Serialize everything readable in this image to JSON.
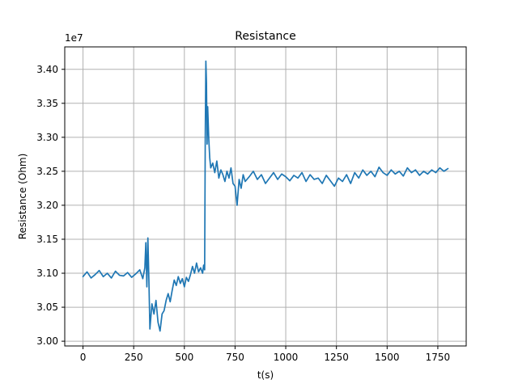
{
  "chart_data": {
    "type": "line",
    "title": "Resistance",
    "xlabel": "t(s)",
    "ylabel": "Resistance (Ohm)",
    "offset_label": "1e7",
    "xlim": [
      -90,
      1890
    ],
    "ylim": [
      2.993,
      3.433
    ],
    "xticks": [
      0,
      250,
      500,
      750,
      1000,
      1250,
      1500,
      1750
    ],
    "yticks": [
      3.0,
      3.05,
      3.1,
      3.15,
      3.2,
      3.25,
      3.3,
      3.35,
      3.4
    ],
    "xtick_labels": [
      "0",
      "250",
      "500",
      "750",
      "1000",
      "1250",
      "1500",
      "1750"
    ],
    "ytick_labels": [
      "3.00",
      "3.05",
      "3.10",
      "3.15",
      "3.20",
      "3.25",
      "3.30",
      "3.35",
      "3.40"
    ],
    "grid": true,
    "line_color": "#1f77b4",
    "series": [
      {
        "x": [
          0,
          20,
          40,
          60,
          80,
          100,
          120,
          140,
          160,
          180,
          200,
          220,
          240,
          260,
          280,
          295,
          305,
          310,
          315,
          320,
          325,
          330,
          340,
          350,
          360,
          370,
          380,
          390,
          400,
          410,
          420,
          430,
          440,
          450,
          460,
          470,
          480,
          490,
          500,
          510,
          520,
          530,
          540,
          550,
          560,
          570,
          580,
          590,
          595,
          600,
          603,
          606,
          609,
          612,
          615,
          620,
          625,
          630,
          640,
          650,
          660,
          670,
          680,
          690,
          700,
          710,
          720,
          730,
          740,
          750,
          760,
          770,
          780,
          790,
          800,
          820,
          840,
          860,
          880,
          900,
          920,
          940,
          960,
          980,
          1000,
          1020,
          1040,
          1060,
          1080,
          1100,
          1120,
          1140,
          1160,
          1180,
          1200,
          1220,
          1240,
          1260,
          1280,
          1300,
          1320,
          1340,
          1360,
          1380,
          1400,
          1420,
          1440,
          1460,
          1480,
          1500,
          1520,
          1540,
          1560,
          1580,
          1600,
          1620,
          1640,
          1660,
          1680,
          1700,
          1720,
          1740,
          1760,
          1780,
          1800
        ],
        "y": [
          3.095,
          3.102,
          3.093,
          3.098,
          3.104,
          3.095,
          3.1,
          3.093,
          3.103,
          3.097,
          3.096,
          3.101,
          3.094,
          3.099,
          3.105,
          3.092,
          3.108,
          3.145,
          3.08,
          3.152,
          3.09,
          3.018,
          3.055,
          3.04,
          3.06,
          3.028,
          3.015,
          3.04,
          3.045,
          3.06,
          3.07,
          3.058,
          3.075,
          3.09,
          3.082,
          3.095,
          3.085,
          3.092,
          3.08,
          3.094,
          3.088,
          3.098,
          3.11,
          3.1,
          3.115,
          3.102,
          3.108,
          3.1,
          3.112,
          3.105,
          3.3,
          3.412,
          3.38,
          3.29,
          3.345,
          3.3,
          3.27,
          3.255,
          3.262,
          3.248,
          3.265,
          3.24,
          3.252,
          3.245,
          3.235,
          3.25,
          3.24,
          3.255,
          3.232,
          3.228,
          3.2,
          3.238,
          3.225,
          3.245,
          3.235,
          3.242,
          3.25,
          3.238,
          3.245,
          3.232,
          3.24,
          3.248,
          3.238,
          3.246,
          3.242,
          3.236,
          3.244,
          3.24,
          3.248,
          3.235,
          3.245,
          3.238,
          3.24,
          3.232,
          3.244,
          3.236,
          3.228,
          3.24,
          3.235,
          3.245,
          3.232,
          3.248,
          3.24,
          3.252,
          3.244,
          3.25,
          3.242,
          3.256,
          3.248,
          3.244,
          3.252,
          3.246,
          3.25,
          3.243,
          3.255,
          3.248,
          3.252,
          3.244,
          3.25,
          3.246,
          3.252,
          3.248,
          3.255,
          3.25,
          3.254
        ]
      }
    ]
  }
}
